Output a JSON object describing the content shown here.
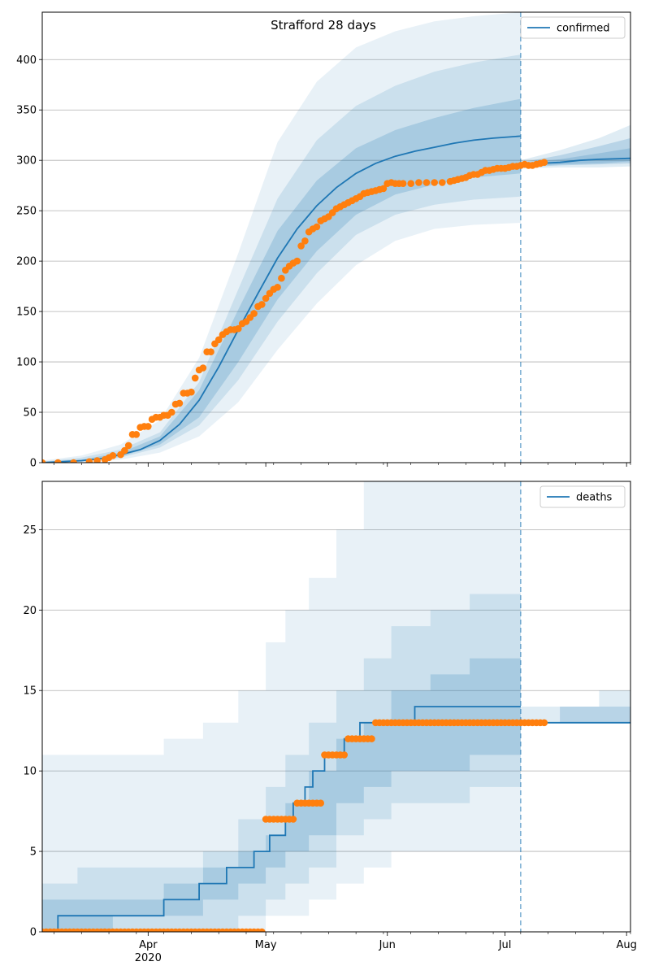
{
  "title": "Strafford 28 days",
  "colors": {
    "model": "#1f77b4",
    "observed": "#ff7f0e",
    "grid": "#b0b0b0"
  },
  "chart_data": [
    {
      "name": "confirmed",
      "type": "line",
      "legend": {
        "label": "confirmed",
        "placement": "upper-right"
      },
      "grid": "y",
      "xlim": [
        "2020-03-05",
        "2020-08-02"
      ],
      "ylim": [
        0,
        447
      ],
      "yticks": [
        0,
        50,
        100,
        150,
        200,
        250,
        300,
        350,
        400
      ],
      "forecast_date": "2020-07-05",
      "model_median": {
        "x": [
          "2020-03-05",
          "2020-03-10",
          "2020-03-15",
          "2020-03-20",
          "2020-03-25",
          "2020-03-30",
          "2020-04-04",
          "2020-04-09",
          "2020-04-14",
          "2020-04-19",
          "2020-04-24",
          "2020-04-29",
          "2020-05-04",
          "2020-05-09",
          "2020-05-14",
          "2020-05-19",
          "2020-05-24",
          "2020-05-29",
          "2020-06-03",
          "2020-06-08",
          "2020-06-13",
          "2020-06-18",
          "2020-06-23",
          "2020-06-28",
          "2020-07-05"
        ],
        "y": [
          0,
          1,
          2,
          4,
          8,
          13,
          22,
          38,
          62,
          95,
          132,
          168,
          203,
          232,
          255,
          273,
          287,
          297,
          304,
          309,
          313,
          317,
          320,
          322,
          324
        ]
      },
      "bands": [
        {
          "x": [
            "2020-03-05",
            "2020-03-15",
            "2020-03-25",
            "2020-04-04",
            "2020-04-14",
            "2020-04-24",
            "2020-05-04",
            "2020-05-14",
            "2020-05-24",
            "2020-06-03",
            "2020-06-13",
            "2020-06-23",
            "2020-07-05"
          ],
          "lower": [
            0,
            0,
            3,
            10,
            26,
            60,
            112,
            158,
            196,
            220,
            232,
            236,
            238
          ],
          "upper": [
            2,
            7,
            18,
            42,
            104,
            208,
            318,
            378,
            412,
            428,
            438,
            443,
            447
          ]
        },
        {
          "x": [
            "2020-03-05",
            "2020-03-15",
            "2020-03-25",
            "2020-04-04",
            "2020-04-14",
            "2020-04-24",
            "2020-05-04",
            "2020-05-14",
            "2020-05-24",
            "2020-06-03",
            "2020-06-13",
            "2020-06-23",
            "2020-07-05"
          ],
          "lower": [
            0,
            1,
            5,
            15,
            37,
            82,
            140,
            188,
            226,
            246,
            256,
            261,
            264
          ],
          "upper": [
            1,
            5,
            13,
            30,
            80,
            172,
            262,
            320,
            354,
            374,
            388,
            397,
            405
          ]
        },
        {
          "x": [
            "2020-03-05",
            "2020-03-15",
            "2020-03-25",
            "2020-04-04",
            "2020-04-14",
            "2020-04-24",
            "2020-05-04",
            "2020-05-14",
            "2020-05-24",
            "2020-06-03",
            "2020-06-13",
            "2020-06-23",
            "2020-07-05"
          ],
          "lower": [
            0,
            1,
            6,
            18,
            45,
            100,
            162,
            210,
            246,
            266,
            276,
            283,
            287
          ],
          "upper": [
            1,
            3,
            10,
            26,
            72,
            152,
            230,
            280,
            312,
            330,
            342,
            352,
            361
          ]
        }
      ],
      "post_forecast_line": {
        "x": [
          "2020-07-05",
          "2020-07-10",
          "2020-07-15",
          "2020-07-20",
          "2020-07-25",
          "2020-08-02"
        ],
        "y": [
          295,
          297,
          298,
          300,
          301,
          302
        ]
      },
      "post_forecast_bands": [
        {
          "x": [
            "2020-07-05",
            "2020-07-15",
            "2020-07-25",
            "2020-08-02"
          ],
          "lower": [
            292,
            293,
            293,
            294
          ],
          "upper": [
            300,
            310,
            322,
            335
          ]
        },
        {
          "x": [
            "2020-07-05",
            "2020-07-15",
            "2020-07-25",
            "2020-08-02"
          ],
          "lower": [
            293,
            295,
            296,
            297
          ],
          "upper": [
            298,
            305,
            314,
            322
          ]
        },
        {
          "x": [
            "2020-07-05",
            "2020-07-15",
            "2020-07-25",
            "2020-08-02"
          ],
          "lower": [
            294,
            296,
            297,
            299
          ],
          "upper": [
            297,
            301,
            307,
            312
          ]
        }
      ],
      "observed": {
        "x": [
          "2020-03-05",
          "2020-03-09",
          "2020-03-13",
          "2020-03-17",
          "2020-03-19",
          "2020-03-21",
          "2020-03-22",
          "2020-03-23",
          "2020-03-25",
          "2020-03-26",
          "2020-03-27",
          "2020-03-28",
          "2020-03-29",
          "2020-03-30",
          "2020-03-31",
          "2020-04-01",
          "2020-04-02",
          "2020-04-03",
          "2020-04-04",
          "2020-04-05",
          "2020-04-06",
          "2020-04-07",
          "2020-04-08",
          "2020-04-09",
          "2020-04-10",
          "2020-04-11",
          "2020-04-12",
          "2020-04-13",
          "2020-04-14",
          "2020-04-15",
          "2020-04-16",
          "2020-04-17",
          "2020-04-18",
          "2020-04-19",
          "2020-04-20",
          "2020-04-21",
          "2020-04-22",
          "2020-04-23",
          "2020-04-24",
          "2020-04-25",
          "2020-04-26",
          "2020-04-27",
          "2020-04-28",
          "2020-04-29",
          "2020-04-30",
          "2020-05-01",
          "2020-05-02",
          "2020-05-03",
          "2020-05-04",
          "2020-05-05",
          "2020-05-06",
          "2020-05-07",
          "2020-05-08",
          "2020-05-09",
          "2020-05-10",
          "2020-05-11",
          "2020-05-12",
          "2020-05-13",
          "2020-05-14",
          "2020-05-15",
          "2020-05-16",
          "2020-05-17",
          "2020-05-18",
          "2020-05-19",
          "2020-05-20",
          "2020-05-21",
          "2020-05-22",
          "2020-05-23",
          "2020-05-24",
          "2020-05-25",
          "2020-05-26",
          "2020-05-27",
          "2020-05-28",
          "2020-05-29",
          "2020-05-30",
          "2020-05-31",
          "2020-06-01",
          "2020-06-02",
          "2020-06-03",
          "2020-06-04",
          "2020-06-05",
          "2020-06-07",
          "2020-06-09",
          "2020-06-11",
          "2020-06-13",
          "2020-06-15",
          "2020-06-17",
          "2020-06-18",
          "2020-06-19",
          "2020-06-20",
          "2020-06-21",
          "2020-06-22",
          "2020-06-23",
          "2020-06-24",
          "2020-06-25",
          "2020-06-26",
          "2020-06-27",
          "2020-06-28",
          "2020-06-29",
          "2020-06-30",
          "2020-07-01",
          "2020-07-02",
          "2020-07-03",
          "2020-07-04",
          "2020-07-05",
          "2020-07-06",
          "2020-07-07",
          "2020-07-08",
          "2020-07-09",
          "2020-07-10",
          "2020-07-11"
        ],
        "y": [
          0,
          0,
          0,
          1,
          2,
          3,
          5,
          7,
          8,
          12,
          17,
          28,
          28,
          35,
          36,
          36,
          43,
          45,
          45,
          47,
          47,
          50,
          58,
          59,
          69,
          69,
          70,
          84,
          92,
          94,
          110,
          110,
          118,
          122,
          127,
          130,
          132,
          132,
          133,
          138,
          140,
          144,
          148,
          155,
          157,
          163,
          168,
          172,
          174,
          183,
          191,
          195,
          198,
          200,
          215,
          220,
          229,
          232,
          234,
          240,
          242,
          244,
          248,
          252,
          254,
          256,
          258,
          260,
          262,
          264,
          267,
          268,
          269,
          270,
          271,
          272,
          277,
          278,
          277,
          277,
          277,
          277,
          278,
          278,
          278,
          278,
          279,
          280,
          281,
          282,
          283,
          285,
          286,
          286,
          288,
          290,
          290,
          291,
          292,
          292,
          292,
          293,
          294,
          294,
          295,
          296,
          295,
          295,
          296,
          297,
          298
        ]
      }
    },
    {
      "name": "deaths",
      "type": "line",
      "legend": {
        "label": "deaths",
        "placement": "upper-right"
      },
      "grid": "y",
      "xlim": [
        "2020-03-05",
        "2020-08-02"
      ],
      "ylim": [
        0,
        28
      ],
      "yticks": [
        0,
        5,
        10,
        15,
        20,
        25
      ],
      "xticks": [
        "2020-04-01",
        "2020-05-01",
        "2020-06-01",
        "2020-07-01",
        "2020-08-01"
      ],
      "xtick_labels": [
        "Apr",
        "May",
        "Jun",
        "Jul",
        "Aug"
      ],
      "year_label": "2020",
      "forecast_date": "2020-07-05",
      "model_median_steps": {
        "x": [
          "2020-03-05",
          "2020-03-09",
          "2020-04-05",
          "2020-04-14",
          "2020-04-21",
          "2020-04-28",
          "2020-05-02",
          "2020-05-06",
          "2020-05-08",
          "2020-05-11",
          "2020-05-13",
          "2020-05-16",
          "2020-05-21",
          "2020-05-25",
          "2020-06-08",
          "2020-06-24",
          "2020-07-05"
        ],
        "y": [
          0,
          1,
          2,
          3,
          4,
          5,
          6,
          7,
          8,
          9,
          10,
          11,
          12,
          13,
          14,
          14,
          14
        ]
      },
      "bands": [
        {
          "x": [
            "2020-03-05",
            "2020-03-14",
            "2020-03-23",
            "2020-04-05",
            "2020-04-15",
            "2020-04-24",
            "2020-05-01",
            "2020-05-06",
            "2020-05-12",
            "2020-05-19",
            "2020-05-26",
            "2020-06-02",
            "2020-06-12",
            "2020-06-22",
            "2020-07-05"
          ],
          "lower": [
            0,
            0,
            0,
            0,
            0,
            0,
            1,
            1,
            2,
            3,
            4,
            5,
            5,
            5,
            6
          ],
          "upper": [
            11,
            11,
            11,
            12,
            13,
            15,
            18,
            20,
            22,
            25,
            28,
            28,
            28,
            28,
            28
          ]
        },
        {
          "x": [
            "2020-03-05",
            "2020-03-14",
            "2020-03-23",
            "2020-04-05",
            "2020-04-15",
            "2020-04-24",
            "2020-05-01",
            "2020-05-06",
            "2020-05-12",
            "2020-05-19",
            "2020-05-26",
            "2020-06-02",
            "2020-06-12",
            "2020-06-22",
            "2020-07-05"
          ],
          "lower": [
            0,
            0,
            0,
            0,
            0,
            1,
            2,
            3,
            4,
            6,
            7,
            8,
            8,
            9,
            9
          ],
          "upper": [
            3,
            4,
            4,
            4,
            5,
            7,
            9,
            11,
            13,
            15,
            17,
            19,
            20,
            21,
            21
          ]
        },
        {
          "x": [
            "2020-03-05",
            "2020-03-14",
            "2020-03-23",
            "2020-04-05",
            "2020-04-15",
            "2020-04-24",
            "2020-05-01",
            "2020-05-06",
            "2020-05-12",
            "2020-05-19",
            "2020-05-26",
            "2020-06-02",
            "2020-06-12",
            "2020-06-22",
            "2020-07-05"
          ],
          "lower": [
            0,
            0,
            1,
            1,
            2,
            3,
            4,
            5,
            6,
            8,
            9,
            10,
            10,
            11,
            11
          ],
          "upper": [
            2,
            2,
            2,
            3,
            4,
            5,
            6,
            8,
            10,
            12,
            13,
            15,
            16,
            17,
            17
          ]
        }
      ],
      "post_forecast_line": {
        "x": [
          "2020-07-05",
          "2020-08-02"
        ],
        "y": [
          13,
          13
        ]
      },
      "post_forecast_bands": [
        {
          "x": [
            "2020-07-05",
            "2020-07-15",
            "2020-07-25",
            "2020-08-02"
          ],
          "lower": [
            13,
            13,
            13,
            13
          ],
          "upper": [
            14,
            14,
            15,
            15
          ]
        },
        {
          "x": [
            "2020-07-05",
            "2020-07-15",
            "2020-07-25",
            "2020-08-02"
          ],
          "lower": [
            13,
            13,
            13,
            13
          ],
          "upper": [
            13,
            14,
            14,
            14
          ]
        }
      ],
      "observed": {
        "segments": [
          {
            "from": "2020-03-05",
            "to": "2020-04-30",
            "y": 0
          },
          {
            "from": "2020-05-01",
            "to": "2020-05-08",
            "y": 7
          },
          {
            "from": "2020-05-09",
            "to": "2020-05-15",
            "y": 8
          },
          {
            "from": "2020-05-16",
            "to": "2020-05-21",
            "y": 11
          },
          {
            "from": "2020-05-22",
            "to": "2020-05-28",
            "y": 12
          },
          {
            "from": "2020-05-29",
            "to": "2020-07-11",
            "y": 13
          }
        ]
      }
    }
  ]
}
